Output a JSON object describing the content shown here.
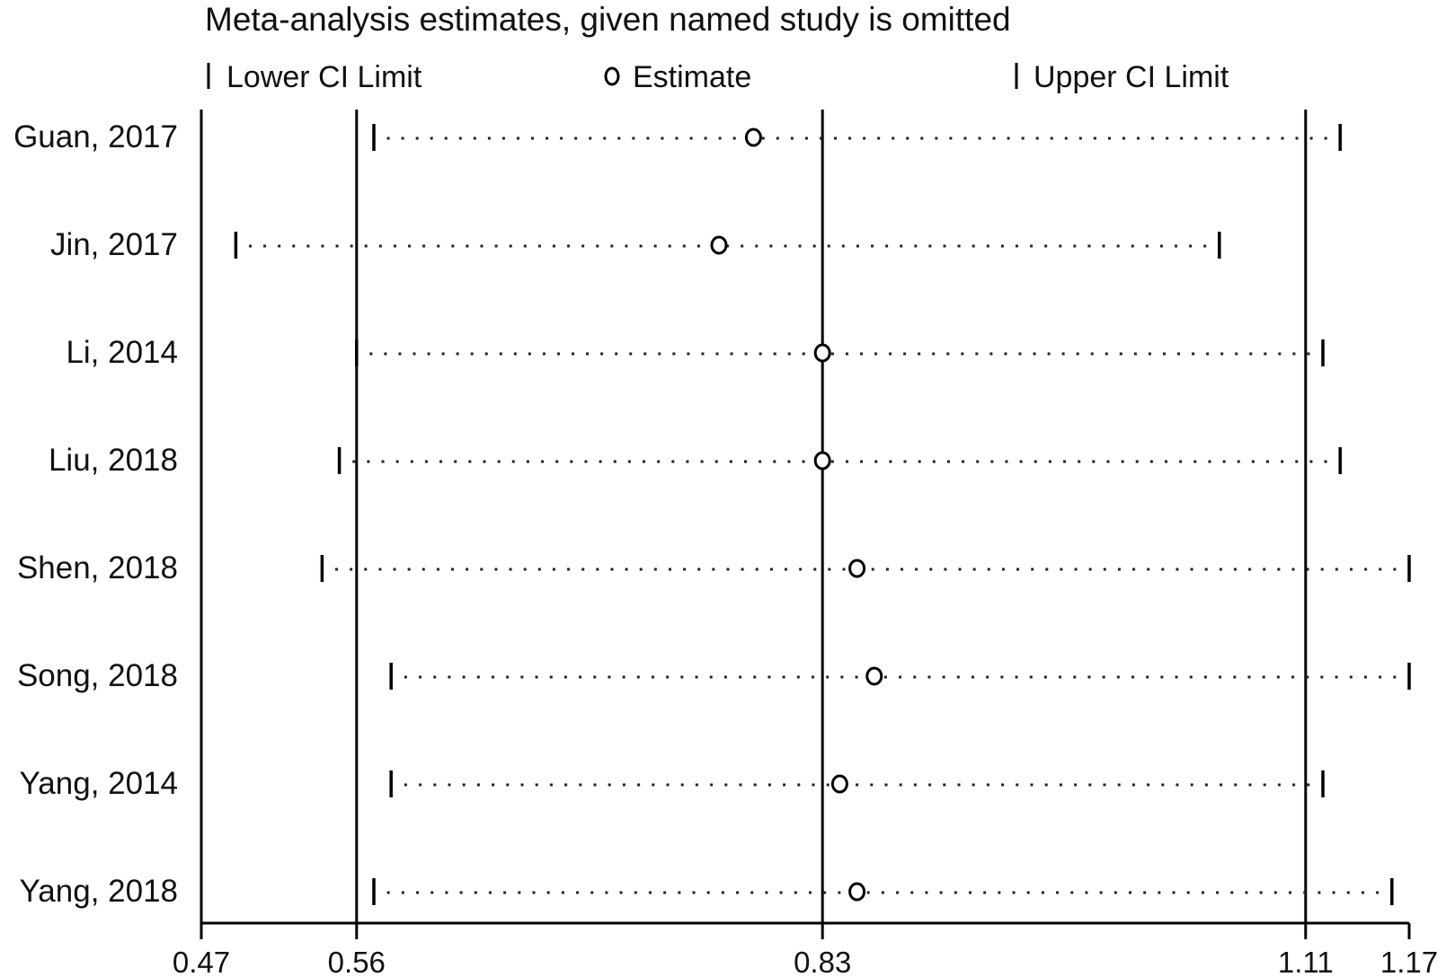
{
  "chart_data": {
    "type": "scatter",
    "title": "Meta-analysis estimates, given named study is omitted",
    "legend": {
      "placement": "top",
      "entries": [
        {
          "marker": "bar-icon",
          "label": "Lower CI Limit"
        },
        {
          "marker": "circle-icon",
          "label": "Estimate"
        },
        {
          "marker": "bar-icon",
          "label": "Upper CI Limit"
        }
      ]
    },
    "xlim": [
      0.47,
      1.17
    ],
    "x_ticks": [
      0.47,
      0.56,
      0.83,
      1.11,
      1.17
    ],
    "x_tick_labels": [
      "0.47",
      "0.56",
      "0.83",
      "1.11",
      "1.17"
    ],
    "reference_lines": [
      0.56,
      0.83,
      1.11
    ],
    "studies": [
      {
        "label": "Guan, 2017",
        "lower": 0.57,
        "estimate": 0.79,
        "upper": 1.13
      },
      {
        "label": "Jin, 2017",
        "lower": 0.49,
        "estimate": 0.77,
        "upper": 1.06
      },
      {
        "label": "Li, 2014",
        "lower": 0.56,
        "estimate": 0.83,
        "upper": 1.12
      },
      {
        "label": "Liu, 2018",
        "lower": 0.55,
        "estimate": 0.83,
        "upper": 1.13
      },
      {
        "label": "Shen, 2018",
        "lower": 0.54,
        "estimate": 0.85,
        "upper": 1.17
      },
      {
        "label": "Song, 2018",
        "lower": 0.58,
        "estimate": 0.86,
        "upper": 1.17
      },
      {
        "label": "Yang, 2014",
        "lower": 0.58,
        "estimate": 0.84,
        "upper": 1.12
      },
      {
        "label": "Yang, 2018",
        "lower": 0.57,
        "estimate": 0.85,
        "upper": 1.16
      }
    ],
    "colors": {
      "marks": "#000000",
      "background": "#ffffff"
    }
  }
}
